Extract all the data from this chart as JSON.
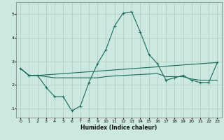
{
  "title": "",
  "xlabel": "Humidex (Indice chaleur)",
  "ylabel": "",
  "background_color": "#cce8e0",
  "grid_color": "#aaccbb",
  "line_color": "#1a6b5a",
  "xlim": [
    -0.5,
    23.5
  ],
  "ylim": [
    0.6,
    5.5
  ],
  "yticks": [
    1,
    2,
    3,
    4,
    5
  ],
  "xticks": [
    0,
    1,
    2,
    3,
    4,
    5,
    6,
    7,
    8,
    9,
    10,
    11,
    12,
    13,
    14,
    15,
    16,
    17,
    18,
    19,
    20,
    21,
    22,
    23
  ],
  "series1_x": [
    0,
    1,
    2,
    3,
    4,
    5,
    6,
    7,
    8,
    9,
    10,
    11,
    12,
    13,
    14,
    15,
    16,
    17,
    18,
    19,
    20,
    21,
    22,
    23
  ],
  "series1_y": [
    2.7,
    2.4,
    2.4,
    1.9,
    1.5,
    1.5,
    0.9,
    1.1,
    2.1,
    2.9,
    3.5,
    4.5,
    5.05,
    5.1,
    4.25,
    3.3,
    2.9,
    2.2,
    2.3,
    2.4,
    2.2,
    2.1,
    2.1,
    2.95
  ],
  "series2_x": [
    0,
    1,
    2,
    23
  ],
  "series2_y": [
    2.7,
    2.4,
    2.4,
    2.95
  ],
  "series3_x": [
    0,
    1,
    2,
    3,
    4,
    5,
    6,
    7,
    8,
    9,
    10,
    11,
    12,
    13,
    14,
    15,
    16,
    17,
    18,
    19,
    20,
    21,
    22,
    23
  ],
  "series3_y": [
    2.7,
    2.4,
    2.4,
    2.35,
    2.3,
    2.3,
    2.3,
    2.3,
    2.3,
    2.3,
    2.35,
    2.38,
    2.4,
    2.42,
    2.44,
    2.46,
    2.48,
    2.35,
    2.35,
    2.35,
    2.25,
    2.2,
    2.2,
    2.2
  ]
}
